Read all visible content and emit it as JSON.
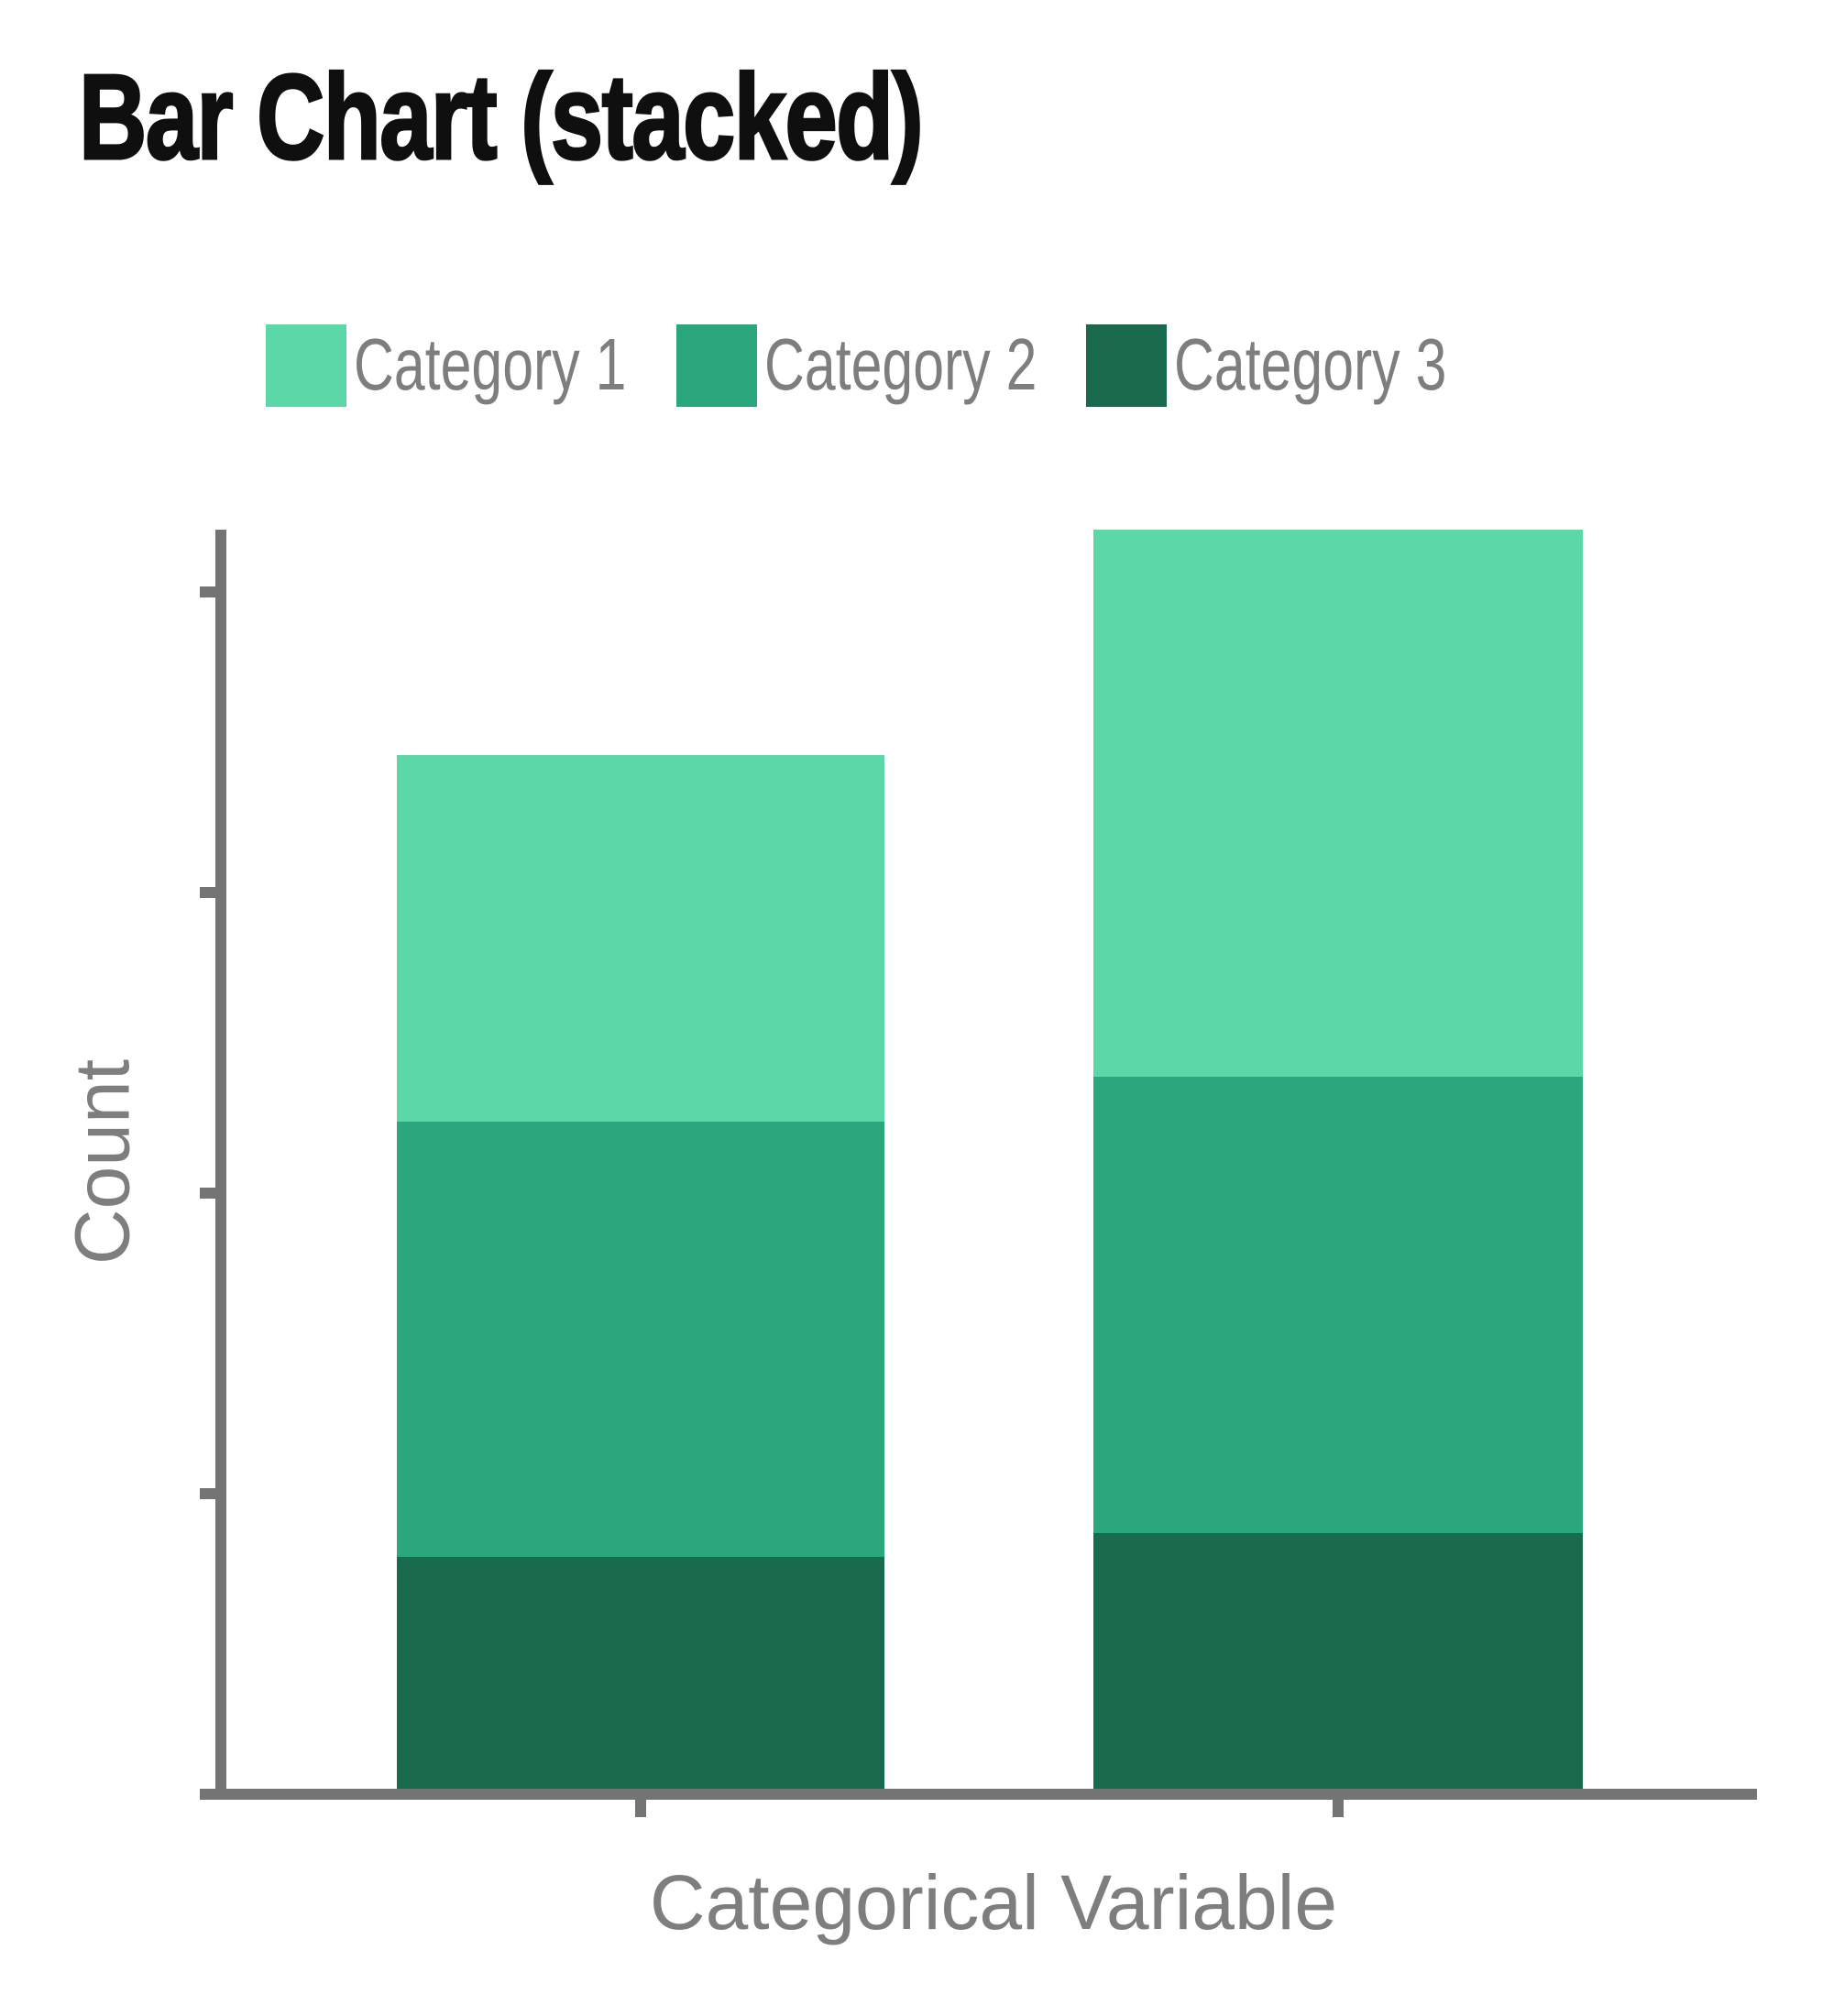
{
  "title": "Bar Chart (stacked)",
  "colors": {
    "category1": "#5bd7a8",
    "category2": "#2aa77d",
    "category3": "#1a6a4e",
    "axis": "#747474",
    "label_text": "#7e7e7e",
    "title_text": "#0f0f0f",
    "background": "#ffffff"
  },
  "legend": {
    "items": [
      {
        "label": "Category 1",
        "color": "#5bd7a8"
      },
      {
        "label": "Category 2",
        "color": "#2aa77d"
      },
      {
        "label": "Category 3",
        "color": "#1a6a4e"
      }
    ]
  },
  "axes": {
    "y_label": "Count",
    "x_label": "Categorical Variable",
    "y_tick_labels_shown": false,
    "x_tick_labels_shown": false,
    "y_tick_count": 5,
    "x_tick_count": 2
  },
  "chart_data": {
    "type": "bar",
    "stacked": true,
    "title": "Bar Chart (stacked)",
    "xlabel": "Categorical Variable",
    "ylabel": "Count",
    "categories": [
      "",
      ""
    ],
    "series": [
      {
        "name": "Category 1",
        "color": "#5bd7a8",
        "values": [
          1.22,
          1.82
        ]
      },
      {
        "name": "Category 2",
        "color": "#2aa77d",
        "values": [
          1.45,
          1.52
        ]
      },
      {
        "name": "Category 3",
        "color": "#1a6a4e",
        "values": [
          0.77,
          0.85
        ]
      }
    ],
    "stack_order_bottom_to_top": [
      "Category 3",
      "Category 2",
      "Category 1"
    ],
    "y_axis": {
      "range": [
        0,
        4.2
      ],
      "tick_interval": 1,
      "tick_labels_shown": false
    },
    "legend_position": "top",
    "grid": false,
    "note": "Y-axis ticks are unlabeled in the image; segment values are estimated in tick units (1 unit = one tick interval)."
  }
}
